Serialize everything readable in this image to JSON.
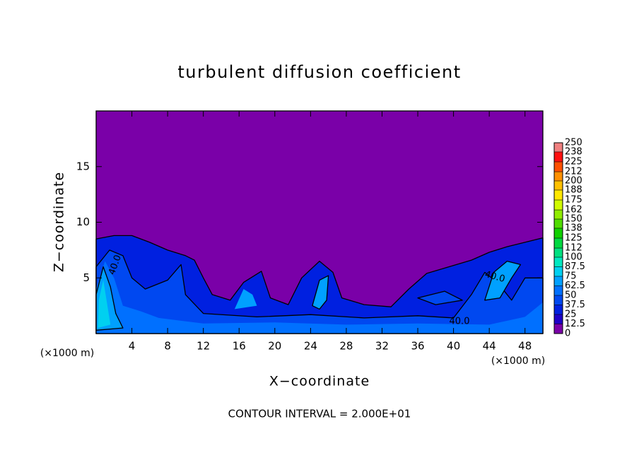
{
  "chart_data": {
    "type": "contour",
    "title": "turbulent diffusion coefficient",
    "xlabel": "X−coordinate",
    "ylabel": "Z−coordinate",
    "x_unit_label": "(×1000 m)",
    "y_unit_label": "(×1000 m)",
    "annotation": "CONTOUR INTERVAL = 2.000E+01",
    "contour_labels": [
      "40.0",
      "40.0",
      "40.0"
    ],
    "xlim": [
      0,
      50
    ],
    "ylim": [
      0,
      20
    ],
    "xticks": [
      4,
      8,
      12,
      16,
      20,
      24,
      28,
      32,
      36,
      40,
      44,
      48
    ],
    "yticks": [
      5,
      10,
      15
    ],
    "colorbar": {
      "levels": [
        0,
        12.5,
        25,
        37.5,
        50,
        62.5,
        75,
        87.5,
        100,
        112,
        125,
        138,
        150,
        162,
        175,
        188,
        200,
        212,
        225,
        238,
        250
      ],
      "colors": [
        "#7a00a8",
        "#1e00c8",
        "#0020e0",
        "#0048f0",
        "#0070ff",
        "#00a0ff",
        "#00d0f0",
        "#00e8c0",
        "#00e080",
        "#00d840",
        "#10d000",
        "#50dc00",
        "#90ec00",
        "#d0fa00",
        "#ffe800",
        "#ffc000",
        "#ff9000",
        "#ff5000",
        "#ff1010",
        "#f08080"
      ]
    }
  }
}
